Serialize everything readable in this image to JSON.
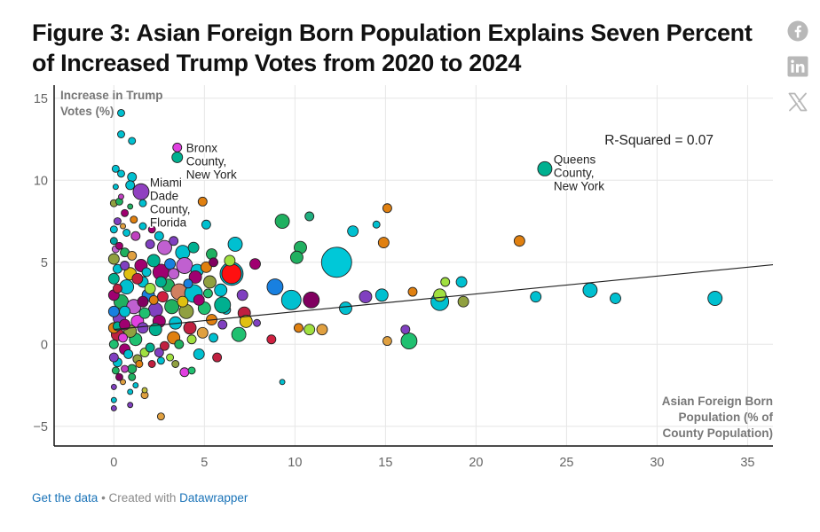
{
  "title": "Figure 3: Asian Foreign Born Population Explains Seven Percent of Increased Trump Votes from 2020 to 2024",
  "social": {
    "icons": [
      "facebook-icon",
      "linkedin-icon",
      "x-icon"
    ]
  },
  "footer": {
    "get_data": "Get the data",
    "separator": " • Created with ",
    "tool": "Datawrapper"
  },
  "chart_data": {
    "type": "scatter",
    "ylabel_lines": [
      "Increase in Trump",
      "Votes (%)"
    ],
    "xlabel_lines": [
      "Asian Foreign Born",
      "Population (% of",
      "County Population)"
    ],
    "xlim": [
      -3.3,
      36.4
    ],
    "ylim": [
      -6.2,
      15.8
    ],
    "xticks": [
      0,
      5,
      10,
      15,
      20,
      25,
      30,
      35
    ],
    "yticks": [
      15,
      10,
      5,
      0,
      -5
    ],
    "grid": true,
    "r_squared_label": "R-Squared = 0.07",
    "trendline": {
      "x": [
        0,
        36.4
      ],
      "y": [
        0.9,
        4.85
      ]
    },
    "annotations": [
      {
        "lines": [
          "Bronx",
          "County,",
          "New York"
        ],
        "x": 3.5,
        "y": 11.4
      },
      {
        "lines": [
          "Miami",
          "Dade",
          "County,",
          "Florida"
        ],
        "x": 1.5,
        "y": 9.3
      },
      {
        "lines": [
          "Queens",
          "County,",
          "New York"
        ],
        "x": 23.8,
        "y": 10.7
      }
    ],
    "points": [
      {
        "x": 0.4,
        "y": 14.1,
        "r": 4,
        "c": "#00c0d0"
      },
      {
        "x": 0.4,
        "y": 12.8,
        "r": 4,
        "c": "#00c0d0"
      },
      {
        "x": 1.0,
        "y": 12.4,
        "r": 4,
        "c": "#00c0d0"
      },
      {
        "x": 3.5,
        "y": 12.0,
        "r": 5,
        "c": "#e040e0"
      },
      {
        "x": 3.5,
        "y": 11.4,
        "r": 6,
        "c": "#00b090"
      },
      {
        "x": 23.8,
        "y": 10.7,
        "r": 8,
        "c": "#00b090"
      },
      {
        "x": 0.1,
        "y": 10.7,
        "r": 4,
        "c": "#00c0d0"
      },
      {
        "x": 0.4,
        "y": 10.4,
        "r": 4,
        "c": "#00c0d0"
      },
      {
        "x": 1.0,
        "y": 10.2,
        "r": 5,
        "c": "#00c0d0"
      },
      {
        "x": 1.5,
        "y": 9.3,
        "r": 9,
        "c": "#9040c0"
      },
      {
        "x": 0.9,
        "y": 9.7,
        "r": 5,
        "c": "#00c0d0"
      },
      {
        "x": 4.9,
        "y": 8.7,
        "r": 5,
        "c": "#e08010"
      },
      {
        "x": 1.6,
        "y": 8.6,
        "r": 4,
        "c": "#00c0d0"
      },
      {
        "x": 15.1,
        "y": 8.3,
        "r": 5,
        "c": "#e08010"
      },
      {
        "x": 10.8,
        "y": 7.8,
        "r": 5,
        "c": "#20b080"
      },
      {
        "x": 9.3,
        "y": 7.5,
        "r": 8,
        "c": "#20b060"
      },
      {
        "x": 14.5,
        "y": 7.3,
        "r": 4,
        "c": "#00c0d0"
      },
      {
        "x": 5.1,
        "y": 7.3,
        "r": 5,
        "c": "#00c0d0"
      },
      {
        "x": 13.2,
        "y": 6.9,
        "r": 6,
        "c": "#00c0d0"
      },
      {
        "x": 6.7,
        "y": 6.1,
        "r": 8,
        "c": "#00c0d0"
      },
      {
        "x": 22.4,
        "y": 6.3,
        "r": 6,
        "c": "#e08010"
      },
      {
        "x": 14.9,
        "y": 6.2,
        "r": 6,
        "c": "#e08010"
      },
      {
        "x": 10.3,
        "y": 5.9,
        "r": 7,
        "c": "#20b060"
      },
      {
        "x": 12.3,
        "y": 5.0,
        "r": 17,
        "c": "#00c8d8"
      },
      {
        "x": 10.1,
        "y": 5.3,
        "r": 7,
        "c": "#20b060"
      },
      {
        "x": 6.5,
        "y": 4.3,
        "r": 13,
        "c": "#00c0d0"
      },
      {
        "x": 6.5,
        "y": 4.3,
        "r": 11,
        "c": "#ff1010"
      },
      {
        "x": 7.8,
        "y": 4.9,
        "r": 6,
        "c": "#a00070"
      },
      {
        "x": 9.8,
        "y": 2.7,
        "r": 11,
        "c": "#00c0d0"
      },
      {
        "x": 8.9,
        "y": 3.5,
        "r": 9,
        "c": "#1880e0"
      },
      {
        "x": 10.9,
        "y": 2.7,
        "r": 9,
        "c": "#800060"
      },
      {
        "x": 12.8,
        "y": 2.2,
        "r": 7,
        "c": "#00c0d0"
      },
      {
        "x": 13.9,
        "y": 2.9,
        "r": 7,
        "c": "#8040c0"
      },
      {
        "x": 14.8,
        "y": 3.0,
        "r": 7,
        "c": "#00c0d0"
      },
      {
        "x": 16.5,
        "y": 3.2,
        "r": 5,
        "c": "#e08010"
      },
      {
        "x": 18.0,
        "y": 2.6,
        "r": 10,
        "c": "#00c0d0"
      },
      {
        "x": 18.0,
        "y": 3.0,
        "r": 7,
        "c": "#a0e040"
      },
      {
        "x": 18.3,
        "y": 3.8,
        "r": 5,
        "c": "#a0e040"
      },
      {
        "x": 19.3,
        "y": 2.6,
        "r": 6,
        "c": "#90a040"
      },
      {
        "x": 19.2,
        "y": 3.8,
        "r": 6,
        "c": "#00c0d0"
      },
      {
        "x": 23.3,
        "y": 2.9,
        "r": 6,
        "c": "#00c0d0"
      },
      {
        "x": 26.3,
        "y": 3.3,
        "r": 8,
        "c": "#00c0d0"
      },
      {
        "x": 27.7,
        "y": 2.8,
        "r": 6,
        "c": "#00c0d0"
      },
      {
        "x": 33.2,
        "y": 2.8,
        "r": 8,
        "c": "#00c0d0"
      },
      {
        "x": 16.3,
        "y": 0.2,
        "r": 9,
        "c": "#20c070"
      },
      {
        "x": 16.1,
        "y": 0.9,
        "r": 5,
        "c": "#8040c0"
      },
      {
        "x": 15.1,
        "y": 0.2,
        "r": 5,
        "c": "#e0a040"
      },
      {
        "x": 11.5,
        "y": 0.9,
        "r": 6,
        "c": "#e0a040"
      },
      {
        "x": 10.8,
        "y": 0.9,
        "r": 6,
        "c": "#a0e040"
      },
      {
        "x": 10.2,
        "y": 1.0,
        "r": 5,
        "c": "#e08010"
      },
      {
        "x": 9.3,
        "y": -2.3,
        "r": 3,
        "c": "#00c0d0"
      },
      {
        "x": 8.7,
        "y": 0.3,
        "r": 5,
        "c": "#d02040"
      },
      {
        "x": 7.9,
        "y": 1.3,
        "r": 4,
        "c": "#8040c0"
      },
      {
        "x": 7.2,
        "y": 1.9,
        "r": 7,
        "c": "#c02040"
      },
      {
        "x": 7.3,
        "y": 1.4,
        "r": 7,
        "c": "#e0c010"
      },
      {
        "x": 6.9,
        "y": 0.6,
        "r": 8,
        "c": "#20c070"
      },
      {
        "x": 5.4,
        "y": 1.5,
        "r": 6,
        "c": "#e08010"
      },
      {
        "x": 6.2,
        "y": 2.1,
        "r": 5,
        "c": "#00c0d0"
      },
      {
        "x": 3.9,
        "y": -1.7,
        "r": 5,
        "c": "#e040e0"
      },
      {
        "x": 2.6,
        "y": -4.4,
        "r": 4,
        "c": "#e0a040"
      },
      {
        "x": 1.7,
        "y": -3.1,
        "r": 4,
        "c": "#e0a040"
      },
      {
        "x": 1.7,
        "y": -2.8,
        "r": 3,
        "c": "#c0c040"
      },
      {
        "x": 0.9,
        "y": -3.7,
        "r": 3,
        "c": "#8040c0"
      },
      {
        "x": 0.9,
        "y": -2.9,
        "r": 3,
        "c": "#00c0d0"
      },
      {
        "x": 0.0,
        "y": -3.9,
        "r": 3,
        "c": "#8040c0"
      },
      {
        "x": 0.0,
        "y": -3.4,
        "r": 3,
        "c": "#00c0d0"
      },
      {
        "x": 0.0,
        "y": -2.6,
        "r": 3,
        "c": "#8040c0"
      },
      {
        "x": 1.2,
        "y": -2.5,
        "r": 3,
        "c": "#00c0d0"
      },
      {
        "x": 0.5,
        "y": -2.3,
        "r": 3,
        "c": "#e0a040"
      },
      {
        "x": 1.0,
        "y": -2.0,
        "r": 4,
        "c": "#20b060"
      },
      {
        "x": 2.1,
        "y": -1.2,
        "r": 4,
        "c": "#c02040"
      },
      {
        "x": 2.5,
        "y": -0.5,
        "r": 5,
        "c": "#8040c0"
      },
      {
        "x": 3.1,
        "y": -0.8,
        "r": 4,
        "c": "#a0e040"
      },
      {
        "x": 4.3,
        "y": -1.6,
        "r": 4,
        "c": "#20c070"
      },
      {
        "x": 4.7,
        "y": -0.6,
        "r": 6,
        "c": "#00c0d0"
      },
      {
        "x": 5.7,
        "y": -0.8,
        "r": 5,
        "c": "#c02040"
      },
      {
        "x": 0.0,
        "y": 8.6,
        "r": 4,
        "c": "#90a040"
      },
      {
        "x": 0.3,
        "y": 8.7,
        "r": 4,
        "c": "#20b060"
      },
      {
        "x": 0.6,
        "y": 8.0,
        "r": 4,
        "c": "#a00070"
      },
      {
        "x": 0.2,
        "y": 7.5,
        "r": 4,
        "c": "#8040c0"
      },
      {
        "x": 1.1,
        "y": 7.6,
        "r": 4,
        "c": "#e08010"
      },
      {
        "x": 0.7,
        "y": 6.8,
        "r": 4,
        "c": "#00c0d0"
      },
      {
        "x": 1.2,
        "y": 6.6,
        "r": 5,
        "c": "#c040c0"
      },
      {
        "x": 0.0,
        "y": 6.3,
        "r": 4,
        "c": "#00a0a0"
      },
      {
        "x": 2.0,
        "y": 6.1,
        "r": 5,
        "c": "#8040c0"
      },
      {
        "x": 2.8,
        "y": 5.9,
        "r": 8,
        "c": "#c060d0"
      },
      {
        "x": 3.8,
        "y": 5.6,
        "r": 8,
        "c": "#00c0d0"
      },
      {
        "x": 4.4,
        "y": 5.9,
        "r": 6,
        "c": "#00b090"
      },
      {
        "x": 5.4,
        "y": 5.5,
        "r": 6,
        "c": "#20b060"
      },
      {
        "x": 3.9,
        "y": 4.8,
        "r": 9,
        "c": "#c060d0"
      },
      {
        "x": 4.6,
        "y": 4.5,
        "r": 7,
        "c": "#00c0d0"
      },
      {
        "x": 5.1,
        "y": 4.7,
        "r": 6,
        "c": "#e08010"
      },
      {
        "x": 2.6,
        "y": 4.4,
        "r": 9,
        "c": "#a00070"
      },
      {
        "x": 3.0,
        "y": 3.6,
        "r": 7,
        "c": "#20b060"
      },
      {
        "x": 3.6,
        "y": 3.2,
        "r": 9,
        "c": "#d08060"
      },
      {
        "x": 4.4,
        "y": 3.1,
        "r": 10,
        "c": "#00c0d0"
      },
      {
        "x": 4.5,
        "y": 4.1,
        "r": 7,
        "c": "#a00070"
      },
      {
        "x": 5.3,
        "y": 3.8,
        "r": 7,
        "c": "#90a040"
      },
      {
        "x": 5.9,
        "y": 3.3,
        "r": 7,
        "c": "#00c0d0"
      },
      {
        "x": 6.0,
        "y": 2.4,
        "r": 9,
        "c": "#00b090"
      },
      {
        "x": 5.0,
        "y": 2.2,
        "r": 7,
        "c": "#20c070"
      },
      {
        "x": 4.0,
        "y": 2.0,
        "r": 8,
        "c": "#90a040"
      },
      {
        "x": 3.2,
        "y": 2.3,
        "r": 8,
        "c": "#20b060"
      },
      {
        "x": 2.3,
        "y": 2.1,
        "r": 8,
        "c": "#8040c0"
      },
      {
        "x": 2.5,
        "y": 1.4,
        "r": 7,
        "c": "#a00070"
      },
      {
        "x": 3.4,
        "y": 1.3,
        "r": 7,
        "c": "#00c0d0"
      },
      {
        "x": 4.2,
        "y": 1.0,
        "r": 7,
        "c": "#c02040"
      },
      {
        "x": 4.9,
        "y": 0.7,
        "r": 6,
        "c": "#e0a040"
      },
      {
        "x": 2.3,
        "y": 0.9,
        "r": 7,
        "c": "#00b090"
      },
      {
        "x": 3.3,
        "y": 0.4,
        "r": 7,
        "c": "#e08010"
      },
      {
        "x": 1.2,
        "y": 0.3,
        "r": 7,
        "c": "#20c070"
      },
      {
        "x": 1.7,
        "y": -0.5,
        "r": 5,
        "c": "#a0e040"
      },
      {
        "x": 0.6,
        "y": -0.3,
        "r": 6,
        "c": "#a00070"
      },
      {
        "x": 0.2,
        "y": -1.1,
        "r": 5,
        "c": "#00c0d0"
      },
      {
        "x": 1.0,
        "y": -1.5,
        "r": 5,
        "c": "#20b060"
      },
      {
        "x": 0.3,
        "y": -2.0,
        "r": 4,
        "c": "#800060"
      },
      {
        "x": 1.3,
        "y": 1.4,
        "r": 7,
        "c": "#e040e0"
      },
      {
        "x": 1.9,
        "y": 3.0,
        "r": 7,
        "c": "#1880e0"
      },
      {
        "x": 1.5,
        "y": 4.8,
        "r": 7,
        "c": "#a00070"
      },
      {
        "x": 2.2,
        "y": 5.1,
        "r": 7,
        "c": "#00b090"
      },
      {
        "x": 0.9,
        "y": 4.3,
        "r": 7,
        "c": "#e0c010"
      },
      {
        "x": 0.7,
        "y": 3.5,
        "r": 8,
        "c": "#00c0d0"
      },
      {
        "x": 0.4,
        "y": 2.6,
        "r": 8,
        "c": "#20b060"
      },
      {
        "x": 1.1,
        "y": 2.3,
        "r": 8,
        "c": "#c060d0"
      },
      {
        "x": 0.3,
        "y": 1.6,
        "r": 7,
        "c": "#8040c0"
      },
      {
        "x": 0.9,
        "y": 0.8,
        "r": 7,
        "c": "#90a040"
      },
      {
        "x": 0.2,
        "y": 0.6,
        "r": 7,
        "c": "#c02040"
      },
      {
        "x": 1.6,
        "y": 3.8,
        "r": 6,
        "c": "#00c0d0"
      },
      {
        "x": 2.7,
        "y": 2.9,
        "r": 6,
        "c": "#d02040"
      },
      {
        "x": 3.1,
        "y": 4.9,
        "r": 6,
        "c": "#1880e0"
      },
      {
        "x": 6.4,
        "y": 5.1,
        "r": 6,
        "c": "#a0e040"
      },
      {
        "x": 5.5,
        "y": 5.0,
        "r": 5,
        "c": "#800060"
      },
      {
        "x": 7.1,
        "y": 3.0,
        "r": 6,
        "c": "#8040c0"
      },
      {
        "x": 0.0,
        "y": 5.2,
        "r": 6,
        "c": "#90a040"
      },
      {
        "x": 0.0,
        "y": 4.0,
        "r": 6,
        "c": "#00b090"
      },
      {
        "x": 0.0,
        "y": 3.0,
        "r": 6,
        "c": "#a00070"
      },
      {
        "x": 0.0,
        "y": 2.0,
        "r": 6,
        "c": "#1880e0"
      },
      {
        "x": 0.0,
        "y": 1.0,
        "r": 6,
        "c": "#e08010"
      },
      {
        "x": 0.0,
        "y": 0.0,
        "r": 5,
        "c": "#20c070"
      },
      {
        "x": 0.0,
        "y": -0.8,
        "r": 5,
        "c": "#8040c0"
      },
      {
        "x": 0.2,
        "y": 4.6,
        "r": 5,
        "c": "#00c0d0"
      },
      {
        "x": 0.2,
        "y": 3.4,
        "r": 5,
        "c": "#c02040"
      },
      {
        "x": 0.2,
        "y": 1.1,
        "r": 5,
        "c": "#00b090"
      },
      {
        "x": 0.1,
        "y": 5.8,
        "r": 4,
        "c": "#c060d0"
      },
      {
        "x": 0.0,
        "y": 7.0,
        "r": 4,
        "c": "#00c0d0"
      },
      {
        "x": 0.3,
        "y": 6.0,
        "r": 4,
        "c": "#a00070"
      },
      {
        "x": 0.6,
        "y": 5.6,
        "r": 5,
        "c": "#20b060"
      },
      {
        "x": 1.0,
        "y": 5.4,
        "r": 5,
        "c": "#e0a040"
      },
      {
        "x": 0.6,
        "y": 4.8,
        "r": 5,
        "c": "#8040c0"
      },
      {
        "x": 1.3,
        "y": 4.0,
        "r": 6,
        "c": "#c02040"
      },
      {
        "x": 1.8,
        "y": 4.4,
        "r": 5,
        "c": "#00c0d0"
      },
      {
        "x": 2.0,
        "y": 3.4,
        "r": 6,
        "c": "#a0e040"
      },
      {
        "x": 1.6,
        "y": 2.6,
        "r": 6,
        "c": "#800060"
      },
      {
        "x": 2.2,
        "y": 2.7,
        "r": 5,
        "c": "#e08010"
      },
      {
        "x": 0.6,
        "y": 2.0,
        "r": 6,
        "c": "#00c0d0"
      },
      {
        "x": 1.7,
        "y": 1.9,
        "r": 6,
        "c": "#20c070"
      },
      {
        "x": 0.6,
        "y": 1.2,
        "r": 6,
        "c": "#a00070"
      },
      {
        "x": 1.6,
        "y": 1.0,
        "r": 6,
        "c": "#8040c0"
      },
      {
        "x": 0.5,
        "y": 0.4,
        "r": 5,
        "c": "#e040e0"
      },
      {
        "x": 1.3,
        "y": -0.9,
        "r": 5,
        "c": "#90a040"
      },
      {
        "x": 2.0,
        "y": -0.2,
        "r": 5,
        "c": "#00b090"
      },
      {
        "x": 2.8,
        "y": -0.1,
        "r": 5,
        "c": "#c02040"
      },
      {
        "x": 3.6,
        "y": 0.0,
        "r": 5,
        "c": "#20b060"
      },
      {
        "x": 4.3,
        "y": 0.3,
        "r": 5,
        "c": "#a0e040"
      },
      {
        "x": 5.5,
        "y": 0.4,
        "r": 5,
        "c": "#00c0d0"
      },
      {
        "x": 6.0,
        "y": 1.2,
        "r": 5,
        "c": "#8040c0"
      },
      {
        "x": 3.8,
        "y": 2.6,
        "r": 6,
        "c": "#e0c010"
      },
      {
        "x": 2.6,
        "y": 3.8,
        "r": 6,
        "c": "#00b090"
      },
      {
        "x": 3.3,
        "y": 4.3,
        "r": 6,
        "c": "#c060d0"
      },
      {
        "x": 4.7,
        "y": 2.7,
        "r": 6,
        "c": "#a00070"
      },
      {
        "x": 5.2,
        "y": 3.1,
        "r": 5,
        "c": "#20c070"
      },
      {
        "x": 4.1,
        "y": 3.7,
        "r": 5,
        "c": "#1880e0"
      },
      {
        "x": 0.8,
        "y": -0.6,
        "r": 5,
        "c": "#00c0d0"
      },
      {
        "x": 0.1,
        "y": -1.6,
        "r": 4,
        "c": "#20b060"
      },
      {
        "x": 0.6,
        "y": -1.5,
        "r": 4,
        "c": "#c040c0"
      },
      {
        "x": 1.4,
        "y": -1.2,
        "r": 4,
        "c": "#e08010"
      },
      {
        "x": 2.6,
        "y": -1.0,
        "r": 4,
        "c": "#00c0d0"
      },
      {
        "x": 3.4,
        "y": -1.2,
        "r": 4,
        "c": "#90a040"
      },
      {
        "x": 0.4,
        "y": 9.0,
        "r": 3,
        "c": "#c040c0"
      },
      {
        "x": 0.1,
        "y": 9.6,
        "r": 3,
        "c": "#00c0d0"
      },
      {
        "x": 0.9,
        "y": 8.4,
        "r": 3,
        "c": "#20b060"
      },
      {
        "x": 1.6,
        "y": 7.2,
        "r": 4,
        "c": "#00c0d0"
      },
      {
        "x": 2.1,
        "y": 7.0,
        "r": 4,
        "c": "#a00070"
      },
      {
        "x": 0.5,
        "y": 7.2,
        "r": 3,
        "c": "#e0a040"
      },
      {
        "x": 2.5,
        "y": 6.6,
        "r": 5,
        "c": "#00c0d0"
      },
      {
        "x": 3.3,
        "y": 6.3,
        "r": 5,
        "c": "#8040c0"
      }
    ]
  }
}
